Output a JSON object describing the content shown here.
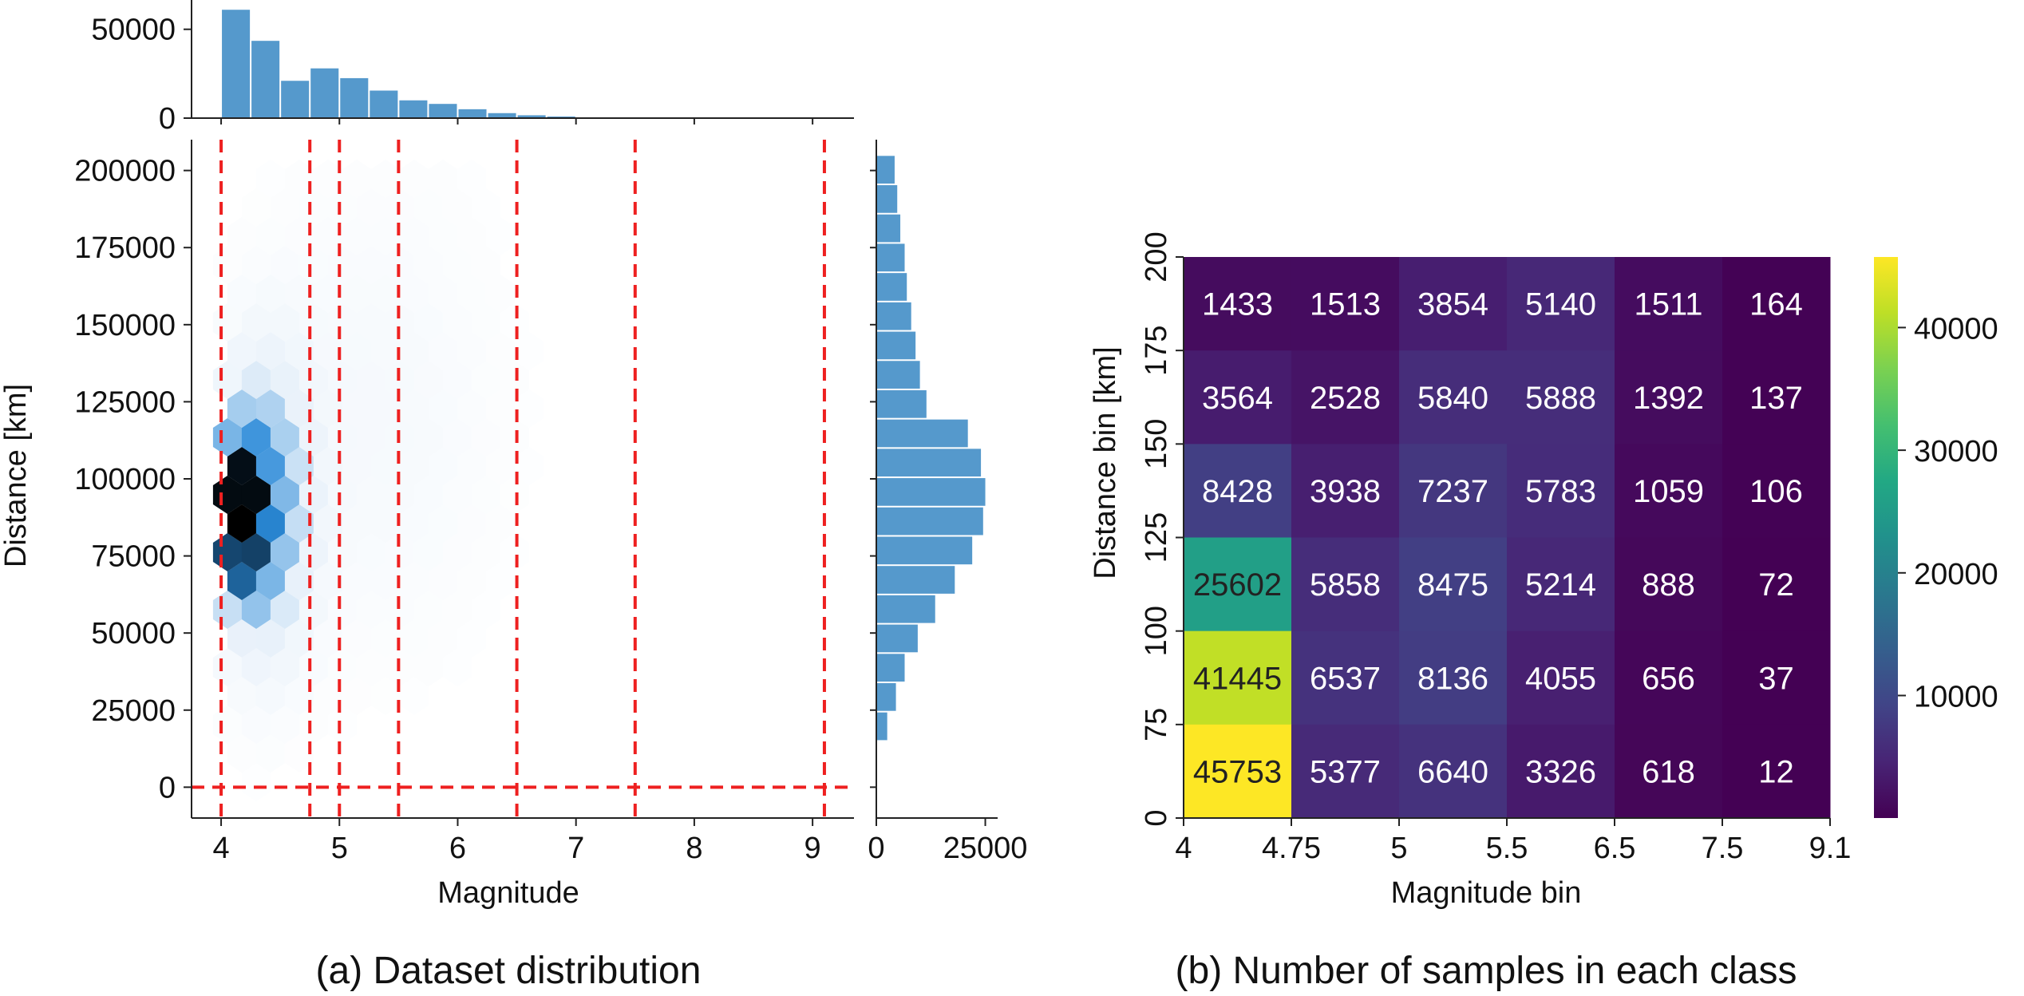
{
  "colors": {
    "hist_bar": "#5599cc",
    "dashed_line": "#ee2020",
    "hex_light": "#e8f1fa",
    "hex_mid": "#2a8ad8",
    "hex_dark": "#0d2b44"
  },
  "chart_data": [
    {
      "type": "hexbin-joint",
      "caption": "(a) Dataset distribution",
      "xlabel": "Magnitude",
      "ylabel": "Distance [km]",
      "xlim": [
        3.75,
        9.35
      ],
      "ylim": [
        -10000,
        210000
      ],
      "xticks": [
        "4",
        "5",
        "6",
        "7",
        "8",
        "9"
      ],
      "xtick_values": [
        4,
        5,
        6,
        7,
        8,
        9
      ],
      "yticks": [
        "0",
        "25000",
        "50000",
        "75000",
        "100000",
        "125000",
        "150000",
        "175000",
        "200000"
      ],
      "ytick_values": [
        0,
        25000,
        50000,
        75000,
        100000,
        125000,
        150000,
        175000,
        200000
      ],
      "class_boundaries_magnitude": [
        4,
        4.75,
        5,
        5.5,
        6.5,
        7.5,
        9.1
      ],
      "class_boundaries_distance": [
        0
      ],
      "top_hist": {
        "yticks": [
          "0",
          "50000"
        ],
        "ytick_values": [
          0,
          50000
        ],
        "ylim": [
          0,
          62000
        ],
        "bin_width": 0.25,
        "bin_starts": [
          4.0,
          4.25,
          4.5,
          4.75,
          5.0,
          5.25,
          5.5,
          5.75,
          6.0,
          6.25,
          6.5,
          6.75,
          7.0
        ],
        "counts": [
          61000,
          43500,
          21000,
          28000,
          22500,
          15500,
          10000,
          8000,
          5000,
          2800,
          1600,
          900,
          300
        ]
      },
      "right_hist": {
        "xticks": [
          "0",
          "25000"
        ],
        "xtick_values": [
          0,
          25000
        ],
        "xlim": [
          0,
          26000
        ],
        "bin_height": 9500,
        "bin_starts": [
          15000,
          24500,
          34000,
          43500,
          53000,
          62500,
          72000,
          81500,
          91000,
          100500,
          110000,
          119500,
          129000,
          138500,
          148000,
          157500,
          167000,
          176500,
          186000,
          195500
        ],
        "counts": [
          2500,
          4500,
          6500,
          9500,
          13500,
          18000,
          22000,
          24500,
          25000,
          24000,
          21000,
          11500,
          10000,
          9000,
          8000,
          7000,
          6500,
          5500,
          4800,
          4200
        ]
      },
      "hexbin": {
        "description": "density of samples",
        "peak": {
          "magnitude": 4.1,
          "distance": 85000
        }
      }
    },
    {
      "type": "heatmap",
      "caption": "(b) Number of samples in each class",
      "xlabel": "Magnitude bin",
      "ylabel": "Distance bin [km]",
      "x_edges": [
        "4",
        "4.75",
        "5",
        "5.5",
        "6.5",
        "7.5",
        "9.1"
      ],
      "y_edges": [
        "0",
        "75",
        "100",
        "125",
        "150",
        "175",
        "200"
      ],
      "rows_top_to_bottom": [
        [
          1433,
          1513,
          3854,
          5140,
          1511,
          164
        ],
        [
          3564,
          2528,
          5840,
          5888,
          1392,
          137
        ],
        [
          8428,
          3938,
          7237,
          5783,
          1059,
          106
        ],
        [
          25602,
          5858,
          8475,
          5214,
          888,
          72
        ],
        [
          41445,
          6537,
          8136,
          4055,
          656,
          37
        ],
        [
          45753,
          5377,
          6640,
          3326,
          618,
          12
        ]
      ],
      "colorbar": {
        "ticks": [
          "10000",
          "20000",
          "30000",
          "40000"
        ],
        "tick_values": [
          10000,
          20000,
          30000,
          40000
        ],
        "vmin": 12,
        "vmax": 45753,
        "colormap": "viridis"
      }
    }
  ]
}
